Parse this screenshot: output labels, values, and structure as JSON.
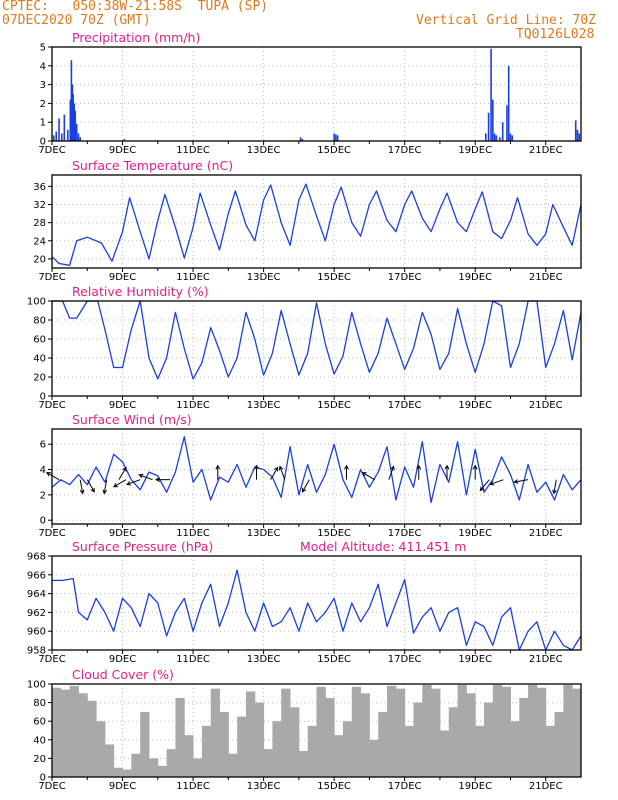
{
  "header": {
    "station": "CPTEC:   050:38W-21:58S  TUPA (SP)",
    "run": "07DEC2020 70Z (GMT)",
    "grid_note": "Vertical Grid Line: 70Z",
    "code": "TQ0126L028"
  },
  "colors": {
    "header": "#e07a1f",
    "title": "#e0208a",
    "line": "#1a3fe0",
    "cloud": "#a9a9a9",
    "grid": "#bbbbbb"
  },
  "chart_data": [
    {
      "type": "bar",
      "title": "Precipitation (mm/h)",
      "xticks": [
        "7DEC",
        "9DEC",
        "11DEC",
        "13DEC",
        "15DEC",
        "17DEC",
        "19DEC",
        "21DEC"
      ],
      "yticks": [
        0,
        1,
        2,
        3,
        4,
        5
      ],
      "ylim": [
        0,
        5
      ],
      "xlim_days": [
        0,
        15
      ],
      "x_days": [
        0.05,
        0.12,
        0.2,
        0.28,
        0.35,
        0.45,
        0.52,
        0.55,
        0.58,
        0.6,
        0.63,
        0.66,
        0.7,
        0.75,
        0.8,
        2.05,
        7.05,
        7.1,
        8.0,
        8.05,
        8.1,
        12.3,
        12.38,
        12.45,
        12.5,
        12.55,
        12.6,
        12.7,
        12.78,
        12.9,
        12.95,
        13.0,
        13.05,
        14.85,
        14.9,
        14.95
      ],
      "values": [
        0.3,
        0.5,
        1.2,
        0.4,
        1.4,
        0.6,
        2.2,
        4.3,
        3.0,
        2.5,
        2.0,
        1.6,
        0.9,
        0.4,
        0.2,
        0.1,
        0.2,
        0.1,
        0.4,
        0.35,
        0.3,
        0.4,
        1.5,
        4.9,
        2.2,
        0.4,
        0.3,
        0.2,
        1.0,
        1.9,
        4.0,
        0.4,
        0.3,
        1.1,
        0.6,
        0.4
      ]
    },
    {
      "type": "line",
      "title": "Surface Temperature (nC)",
      "xticks": [
        "7DEC",
        "9DEC",
        "11DEC",
        "13DEC",
        "15DEC",
        "17DEC",
        "19DEC",
        "21DEC"
      ],
      "yticks": [
        20,
        24,
        28,
        32,
        36
      ],
      "ylim": [
        18,
        38.5
      ],
      "xlim_days": [
        0,
        15
      ],
      "x_days": [
        0,
        0.2,
        0.5,
        0.7,
        1.0,
        1.4,
        1.7,
        2.0,
        2.2,
        2.5,
        2.75,
        3.0,
        3.2,
        3.5,
        3.75,
        4.0,
        4.2,
        4.5,
        4.75,
        5.0,
        5.2,
        5.5,
        5.75,
        6.0,
        6.2,
        6.5,
        6.75,
        7.0,
        7.2,
        7.5,
        7.75,
        8.0,
        8.2,
        8.5,
        8.75,
        9.0,
        9.2,
        9.5,
        9.75,
        10.0,
        10.2,
        10.5,
        10.75,
        11.0,
        11.2,
        11.5,
        11.75,
        12.0,
        12.2,
        12.5,
        12.75,
        13.0,
        13.2,
        13.5,
        13.75,
        14.0,
        14.2,
        14.5,
        14.75,
        15.0
      ],
      "values": [
        20.5,
        19.0,
        18.6,
        24.0,
        24.8,
        23.5,
        19.5,
        26.0,
        33.5,
        26.0,
        20.0,
        28.5,
        34.2,
        27.0,
        20.2,
        27.0,
        34.5,
        27.5,
        22.0,
        30.0,
        35.0,
        27.5,
        24.0,
        33.0,
        36.3,
        28.0,
        23.0,
        33.0,
        36.5,
        29.5,
        24.0,
        32.0,
        35.8,
        28.0,
        25.0,
        32.0,
        35.0,
        28.5,
        26.0,
        32.0,
        35.0,
        29.0,
        26.0,
        31.0,
        34.5,
        28.0,
        26.0,
        31.0,
        34.8,
        26.0,
        24.5,
        28.5,
        33.5,
        25.5,
        23.0,
        25.5,
        32.0,
        27.0,
        23.0,
        32.0
      ]
    },
    {
      "type": "line",
      "title": "Relative Humidity (%)",
      "xticks": [
        "7DEC",
        "9DEC",
        "11DEC",
        "13DEC",
        "15DEC",
        "17DEC",
        "19DEC",
        "21DEC"
      ],
      "yticks": [
        0,
        20,
        40,
        60,
        80,
        100
      ],
      "ylim": [
        0,
        100
      ],
      "xlim_days": [
        0,
        15
      ],
      "x_days": [
        0,
        0.3,
        0.5,
        0.7,
        1.0,
        1.3,
        1.5,
        1.75,
        2.0,
        2.25,
        2.5,
        2.75,
        3.0,
        3.25,
        3.5,
        3.75,
        4.0,
        4.25,
        4.5,
        4.75,
        5.0,
        5.25,
        5.5,
        5.75,
        6.0,
        6.25,
        6.5,
        6.75,
        7.0,
        7.25,
        7.5,
        7.75,
        8.0,
        8.25,
        8.5,
        8.75,
        9.0,
        9.25,
        9.5,
        9.75,
        10.0,
        10.25,
        10.5,
        10.75,
        11.0,
        11.25,
        11.5,
        11.75,
        12.0,
        12.25,
        12.5,
        12.75,
        13.0,
        13.25,
        13.5,
        13.75,
        14.0,
        14.25,
        14.5,
        14.75,
        15.0
      ],
      "values": [
        100,
        100,
        82,
        82,
        100,
        100,
        70,
        30,
        30,
        70,
        100,
        40,
        18,
        40,
        88,
        50,
        18,
        35,
        72,
        48,
        20,
        40,
        88,
        60,
        22,
        45,
        90,
        55,
        22,
        45,
        98,
        55,
        23,
        42,
        88,
        55,
        25,
        45,
        82,
        55,
        28,
        50,
        88,
        65,
        28,
        45,
        92,
        55,
        25,
        55,
        100,
        95,
        30,
        55,
        100,
        100,
        30,
        55,
        90,
        38,
        88
      ]
    },
    {
      "type": "line",
      "title": "Surface Wind (m/s)",
      "xticks": [
        "7DEC",
        "9DEC",
        "11DEC",
        "13DEC",
        "15DEC",
        "17DEC",
        "19DEC",
        "21DEC"
      ],
      "yticks": [
        0,
        2,
        4,
        6
      ],
      "ylim": [
        -0.3,
        7.2
      ],
      "xlim_days": [
        0,
        15
      ],
      "x_days": [
        0,
        0.25,
        0.5,
        0.75,
        1.0,
        1.25,
        1.5,
        1.75,
        2.0,
        2.25,
        2.5,
        2.75,
        3.0,
        3.25,
        3.5,
        3.75,
        4.0,
        4.25,
        4.5,
        4.75,
        5.0,
        5.25,
        5.5,
        5.75,
        6.0,
        6.25,
        6.5,
        6.75,
        7.0,
        7.25,
        7.5,
        7.75,
        8.0,
        8.25,
        8.5,
        8.75,
        9.0,
        9.25,
        9.5,
        9.75,
        10.0,
        10.25,
        10.5,
        10.75,
        11.0,
        11.25,
        11.5,
        11.75,
        12.0,
        12.25,
        12.5,
        12.75,
        13.0,
        13.25,
        13.5,
        13.75,
        14.0,
        14.25,
        14.5,
        14.75,
        15.0
      ],
      "values": [
        2.6,
        3.2,
        2.8,
        3.6,
        2.8,
        4.2,
        3.0,
        5.2,
        4.6,
        3.2,
        2.4,
        3.8,
        3.5,
        2.2,
        3.8,
        6.6,
        3.0,
        4.0,
        1.6,
        3.4,
        3.0,
        4.4,
        2.6,
        4.2,
        4.0,
        3.4,
        1.8,
        5.8,
        2.0,
        4.4,
        2.2,
        3.6,
        6.0,
        3.2,
        1.8,
        4.0,
        2.6,
        3.8,
        5.8,
        1.6,
        4.2,
        2.6,
        6.2,
        1.4,
        4.4,
        3.0,
        6.2,
        2.0,
        5.6,
        2.2,
        3.2,
        5.0,
        3.6,
        1.6,
        4.4,
        2.2,
        3.0,
        1.6,
        3.6,
        2.4,
        3.2
      ],
      "arrows": [
        {
          "day": 0.2,
          "dir_deg": 210
        },
        {
          "day": 0.8,
          "dir_deg": 80
        },
        {
          "day": 1.0,
          "dir_deg": 60
        },
        {
          "day": 1.55,
          "dir_deg": 100
        },
        {
          "day": 1.9,
          "dir_deg": 300
        },
        {
          "day": 2.1,
          "dir_deg": 150
        },
        {
          "day": 2.5,
          "dir_deg": 160
        },
        {
          "day": 2.85,
          "dir_deg": 200
        },
        {
          "day": 3.35,
          "dir_deg": 180
        },
        {
          "day": 4.7,
          "dir_deg": 270
        },
        {
          "day": 5.8,
          "dir_deg": 270
        },
        {
          "day": 6.2,
          "dir_deg": 300
        },
        {
          "day": 6.6,
          "dir_deg": 250
        },
        {
          "day": 7.3,
          "dir_deg": 120
        },
        {
          "day": 8.35,
          "dir_deg": 270
        },
        {
          "day": 9.15,
          "dir_deg": 210
        },
        {
          "day": 9.55,
          "dir_deg": 290
        },
        {
          "day": 10.4,
          "dir_deg": 270
        },
        {
          "day": 11.2,
          "dir_deg": 270
        },
        {
          "day": 12.0,
          "dir_deg": 270
        },
        {
          "day": 12.4,
          "dir_deg": 130
        },
        {
          "day": 12.8,
          "dir_deg": 160
        },
        {
          "day": 13.5,
          "dir_deg": 170
        },
        {
          "day": 14.3,
          "dir_deg": 100
        }
      ]
    },
    {
      "type": "line",
      "title": "Surface Pressure (hPa)",
      "annotation": "Model Altitude: 411.451 m",
      "xticks": [
        "7DEC",
        "9DEC",
        "11DEC",
        "13DEC",
        "15DEC",
        "17DEC",
        "19DEC",
        "21DEC"
      ],
      "yticks": [
        958,
        960,
        962,
        964,
        966,
        968
      ],
      "ylim": [
        958,
        968
      ],
      "xlim_days": [
        0,
        15
      ],
      "x_days": [
        0,
        0.3,
        0.6,
        0.75,
        1.0,
        1.25,
        1.5,
        1.75,
        2.0,
        2.25,
        2.5,
        2.75,
        3.0,
        3.25,
        3.5,
        3.75,
        4.0,
        4.25,
        4.5,
        4.75,
        5.0,
        5.25,
        5.5,
        5.75,
        6.0,
        6.25,
        6.5,
        6.75,
        7.0,
        7.25,
        7.5,
        7.75,
        8.0,
        8.25,
        8.5,
        8.75,
        9.0,
        9.25,
        9.5,
        9.75,
        10.0,
        10.25,
        10.5,
        10.75,
        11.0,
        11.25,
        11.5,
        11.75,
        12.0,
        12.25,
        12.5,
        12.75,
        13.0,
        13.25,
        13.5,
        13.75,
        14.0,
        14.25,
        14.5,
        14.75,
        15.0
      ],
      "values": [
        965.4,
        965.4,
        965.6,
        962.0,
        961.2,
        963.5,
        962.0,
        960.0,
        963.5,
        962.5,
        960.5,
        964.0,
        963.0,
        959.5,
        962.0,
        963.5,
        960.0,
        963.0,
        965.0,
        960.5,
        963.0,
        966.5,
        962.0,
        960.0,
        963.0,
        960.5,
        961.0,
        962.5,
        960.0,
        963.0,
        961.0,
        962.0,
        963.5,
        960.0,
        963.0,
        961.0,
        962.5,
        965.0,
        960.5,
        963.0,
        965.5,
        959.8,
        961.5,
        962.5,
        960.0,
        962.0,
        962.5,
        958.5,
        961.0,
        960.5,
        958.5,
        961.5,
        962.5,
        958.0,
        960.0,
        961.0,
        958.0,
        960.0,
        958.5,
        957.5,
        959.5
      ]
    },
    {
      "type": "bar",
      "title": "Cloud Cover (%)",
      "xticks": [
        "7DEC",
        "9DEC",
        "11DEC",
        "13DEC",
        "15DEC",
        "17DEC",
        "19DEC",
        "21DEC"
      ],
      "yticks": [
        0,
        20,
        40,
        60,
        80,
        100
      ],
      "ylim": [
        0,
        100
      ],
      "xlim_days": [
        0,
        15
      ],
      "x_days": [
        0.0,
        0.25,
        0.5,
        0.75,
        1.0,
        1.25,
        1.5,
        1.75,
        2.0,
        2.25,
        2.5,
        2.75,
        3.0,
        3.25,
        3.5,
        3.75,
        4.0,
        4.25,
        4.5,
        4.75,
        5.0,
        5.25,
        5.5,
        5.75,
        6.0,
        6.25,
        6.5,
        6.75,
        7.0,
        7.25,
        7.5,
        7.75,
        8.0,
        8.25,
        8.5,
        8.75,
        9.0,
        9.25,
        9.5,
        9.75,
        10.0,
        10.25,
        10.5,
        10.75,
        11.0,
        11.25,
        11.5,
        11.75,
        12.0,
        12.25,
        12.5,
        12.75,
        13.0,
        13.25,
        13.5,
        13.75,
        14.0,
        14.25,
        14.5,
        14.75
      ],
      "values": [
        96,
        94,
        98,
        90,
        82,
        60,
        35,
        10,
        8,
        25,
        70,
        20,
        12,
        30,
        85,
        45,
        20,
        55,
        95,
        70,
        25,
        65,
        92,
        80,
        30,
        60,
        95,
        75,
        28,
        55,
        97,
        85,
        45,
        60,
        97,
        90,
        40,
        70,
        98,
        95,
        55,
        80,
        99,
        95,
        50,
        75,
        99,
        90,
        55,
        80,
        99,
        97,
        60,
        85,
        99,
        96,
        55,
        70,
        99,
        95
      ]
    }
  ]
}
